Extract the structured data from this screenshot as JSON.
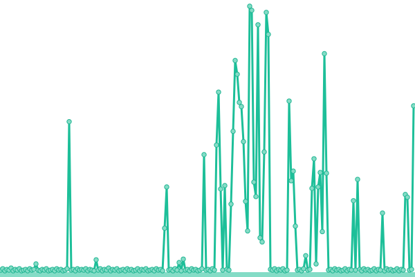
{
  "chart_data": {
    "type": "line",
    "title": "",
    "xlabel": "",
    "ylabel": "",
    "axes_visible": false,
    "grid": false,
    "legend": "none",
    "markers": true,
    "colors": {
      "line": "#1dbf99",
      "marker_fill": "#84dcc6",
      "marker_stroke": "#1fb592"
    },
    "ylim": [
      0,
      390
    ],
    "series": [
      {
        "values": [
          3,
          5,
          2,
          4,
          3,
          6,
          2,
          4,
          3,
          5,
          2,
          3,
          4,
          2,
          5,
          3,
          4,
          12,
          3,
          2,
          4,
          3,
          5,
          2,
          3,
          4,
          2,
          5,
          3,
          4,
          2,
          3,
          5,
          219,
          3,
          4,
          2,
          5,
          3,
          4,
          3,
          5,
          2,
          4,
          3,
          2,
          18,
          3,
          5,
          2,
          4,
          3,
          6,
          2,
          4,
          3,
          5,
          2,
          3,
          4,
          2,
          5,
          3,
          4,
          2,
          3,
          5,
          2,
          4,
          3,
          5,
          2,
          3,
          4,
          2,
          5,
          3,
          4,
          2,
          64,
          124,
          3,
          4,
          2,
          5,
          3,
          14,
          2,
          19,
          3,
          4,
          2,
          5,
          3,
          4,
          2,
          3,
          5,
          171,
          3,
          4,
          2,
          5,
          3,
          185,
          262,
          121,
          3,
          126,
          4,
          3,
          99,
          205,
          308,
          288,
          247,
          241,
          190,
          103,
          60,
          387,
          381,
          131,
          110,
          360,
          50,
          44,
          175,
          378,
          346,
          4,
          3,
          5,
          2,
          4,
          3,
          5,
          2,
          3,
          249,
          133,
          147,
          67,
          3,
          4,
          2,
          5,
          24,
          3,
          4,
          122,
          165,
          12,
          124,
          145,
          59,
          318,
          144,
          3,
          4,
          2,
          5,
          3,
          4,
          2,
          3,
          5,
          2,
          4,
          3,
          104,
          3,
          135,
          4,
          2,
          5,
          3,
          4,
          2,
          3,
          5,
          2,
          4,
          3,
          86,
          2,
          5,
          3,
          4,
          2,
          3,
          5,
          2,
          4,
          3,
          113,
          109,
          3,
          4,
          242
        ]
      }
    ]
  }
}
